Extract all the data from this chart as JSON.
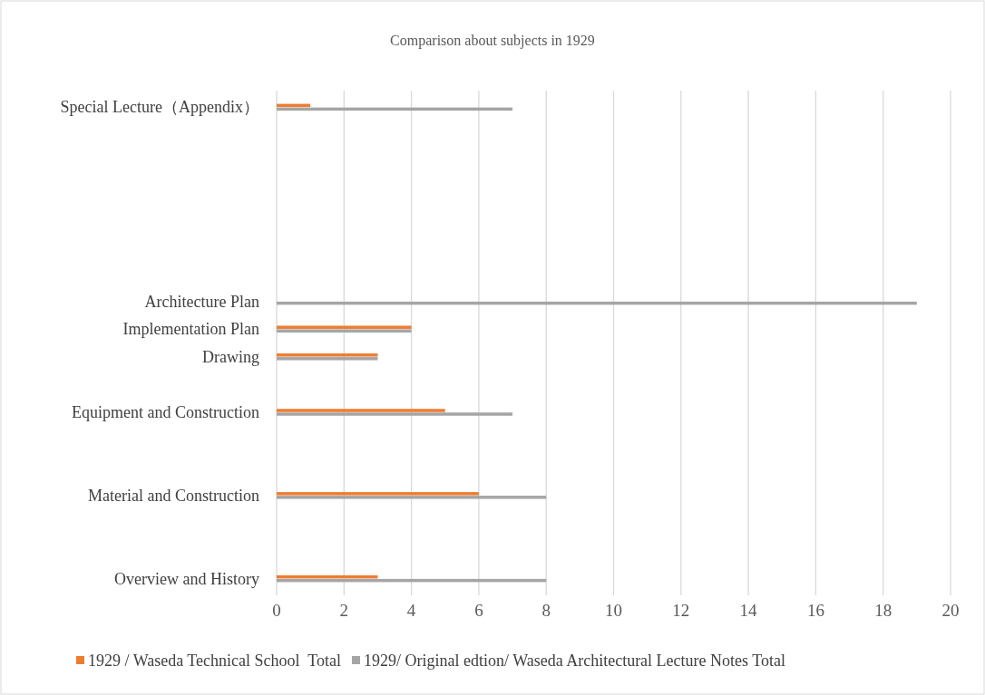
{
  "chart_data": {
    "type": "bar",
    "orientation": "horizontal",
    "title": "Comparison about subjects in 1929",
    "categories": [
      "Special Lecture（Appendix）",
      null,
      null,
      null,
      null,
      null,
      null,
      "Architecture Plan",
      "Implementation Plan",
      "Drawing",
      null,
      "Equipment and Construction",
      null,
      null,
      "Material and Construction",
      null,
      null,
      "Overview and History"
    ],
    "series": [
      {
        "name": "1929 / Waseda Technical School  Total",
        "color": "#ed7d31",
        "values": [
          1,
          null,
          null,
          null,
          null,
          null,
          null,
          null,
          4,
          3,
          null,
          5,
          null,
          null,
          6,
          null,
          null,
          3
        ]
      },
      {
        "name": "1929/ Original edtion/ Waseda Architectural Lecture Notes Total",
        "color": "#a5a5a5",
        "values": [
          7,
          null,
          null,
          null,
          null,
          null,
          null,
          19,
          4,
          3,
          null,
          7,
          null,
          null,
          8,
          null,
          null,
          8
        ]
      }
    ],
    "xlim": [
      0,
      20
    ],
    "xticks": [
      0,
      2,
      4,
      6,
      8,
      10,
      12,
      14,
      16,
      18,
      20
    ],
    "grid": "x",
    "legend": "bottom"
  }
}
